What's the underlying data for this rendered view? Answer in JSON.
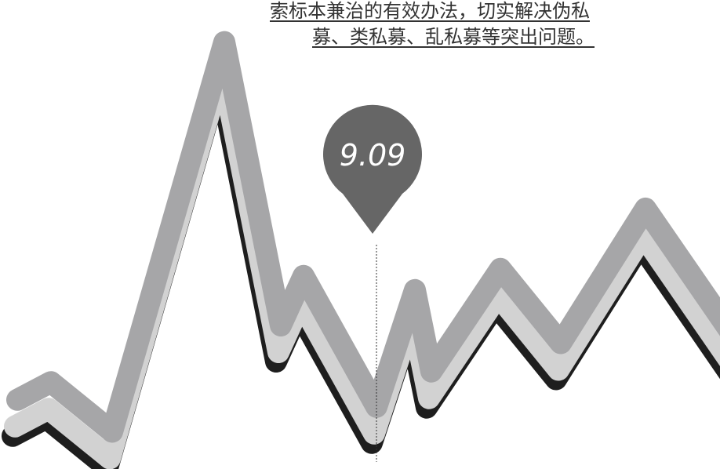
{
  "caption": {
    "line1": "索标本兼治的有效办法，切实解决伪私",
    "line2": "募、类私募、乱私募等突出问题。"
  },
  "chart_data": {
    "type": "line",
    "title": "",
    "xlabel": "",
    "ylabel": "",
    "series": [
      {
        "values": [
          1.2,
          1.7,
          0.3,
          11.3,
          3.3,
          4.7,
          1.0,
          4.3,
          2.0,
          4.9,
          2.8,
          6.6,
          3.0
        ]
      }
    ],
    "ylim": [
      0,
      12
    ],
    "highlight": {
      "index": 6,
      "label": "9.09"
    },
    "colors": {
      "line": "#a6a6a8",
      "line_highlight": "#d2d2d2",
      "shadow": "#1e1e1e",
      "marker": "#666666",
      "marker_text": "#ffffff"
    }
  }
}
